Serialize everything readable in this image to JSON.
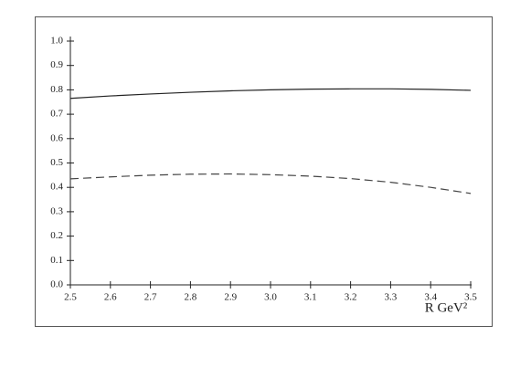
{
  "chart_data": {
    "type": "line",
    "x_label": "R GeV²",
    "xlim": [
      2.5,
      3.5
    ],
    "ylim": [
      0,
      1
    ],
    "xticks": [
      2.5,
      2.6,
      2.7,
      2.8,
      2.9,
      {
        "value": 3,
        "label": "3.0"
      },
      3.1,
      3.2,
      3.3,
      3.4,
      3.5
    ],
    "yticks": [
      {
        "value": 0,
        "label": "0.0"
      },
      0.1,
      0.2,
      0.3,
      0.4,
      0.5,
      0.6,
      0.7,
      0.8,
      0.9,
      {
        "value": 1,
        "label": "1.0"
      }
    ],
    "x": [
      2.5,
      2.6,
      2.7,
      2.8,
      2.9,
      3.0,
      3.1,
      3.2,
      3.3,
      3.4,
      3.5
    ],
    "series": [
      {
        "color": "#222222",
        "dash": false,
        "values": [
          0.765,
          0.775,
          0.783,
          0.79,
          0.796,
          0.8,
          0.803,
          0.804,
          0.804,
          0.802,
          0.798
        ]
      },
      {
        "color": "#444444",
        "dash": true,
        "values": [
          0.435,
          0.443,
          0.45,
          0.454,
          0.455,
          0.452,
          0.446,
          0.436,
          0.421,
          0.4,
          0.375
        ]
      }
    ]
  }
}
